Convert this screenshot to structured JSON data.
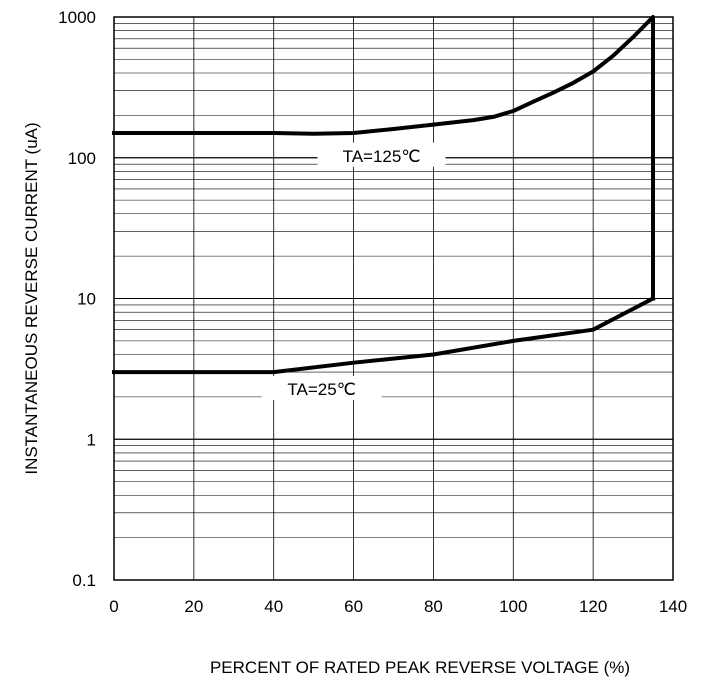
{
  "chart_data": {
    "type": "line",
    "title": "",
    "xlabel": "PERCENT OF RATED PEAK REVERSE VOLTAGE (%)",
    "ylabel": "INSTANTANEOUS REVERSE CURRENT (uA)",
    "xlim": [
      0,
      140
    ],
    "ylim": [
      0.1,
      1000
    ],
    "yscale": "log",
    "grid": true,
    "x_ticks": [
      "0",
      "20",
      "40",
      "60",
      "80",
      "100",
      "120",
      "140"
    ],
    "y_ticks": [
      "0.1",
      "1",
      "10",
      "100",
      "1000"
    ],
    "series": [
      {
        "name": "TA=125℃",
        "x": [
          0,
          40,
          50,
          60,
          70,
          80,
          90,
          95,
          100,
          105,
          110,
          115,
          120,
          125,
          130,
          135,
          135
        ],
        "y": [
          150,
          150,
          148,
          150,
          160,
          172,
          185,
          195,
          215,
          250,
          290,
          340,
          410,
          530,
          720,
          1000,
          10
        ],
        "color": "#000000"
      },
      {
        "name": "TA=25℃",
        "x": [
          0,
          20,
          40,
          60,
          80,
          100,
          120,
          135
        ],
        "y": [
          3,
          3,
          3,
          3.5,
          4,
          5,
          6,
          10
        ],
        "color": "#000000"
      }
    ],
    "annotations": [
      {
        "text": "TA=125℃",
        "x": 67,
        "y": 100
      },
      {
        "text": "TA=25℃",
        "x": 52,
        "y": 2.2
      }
    ]
  }
}
